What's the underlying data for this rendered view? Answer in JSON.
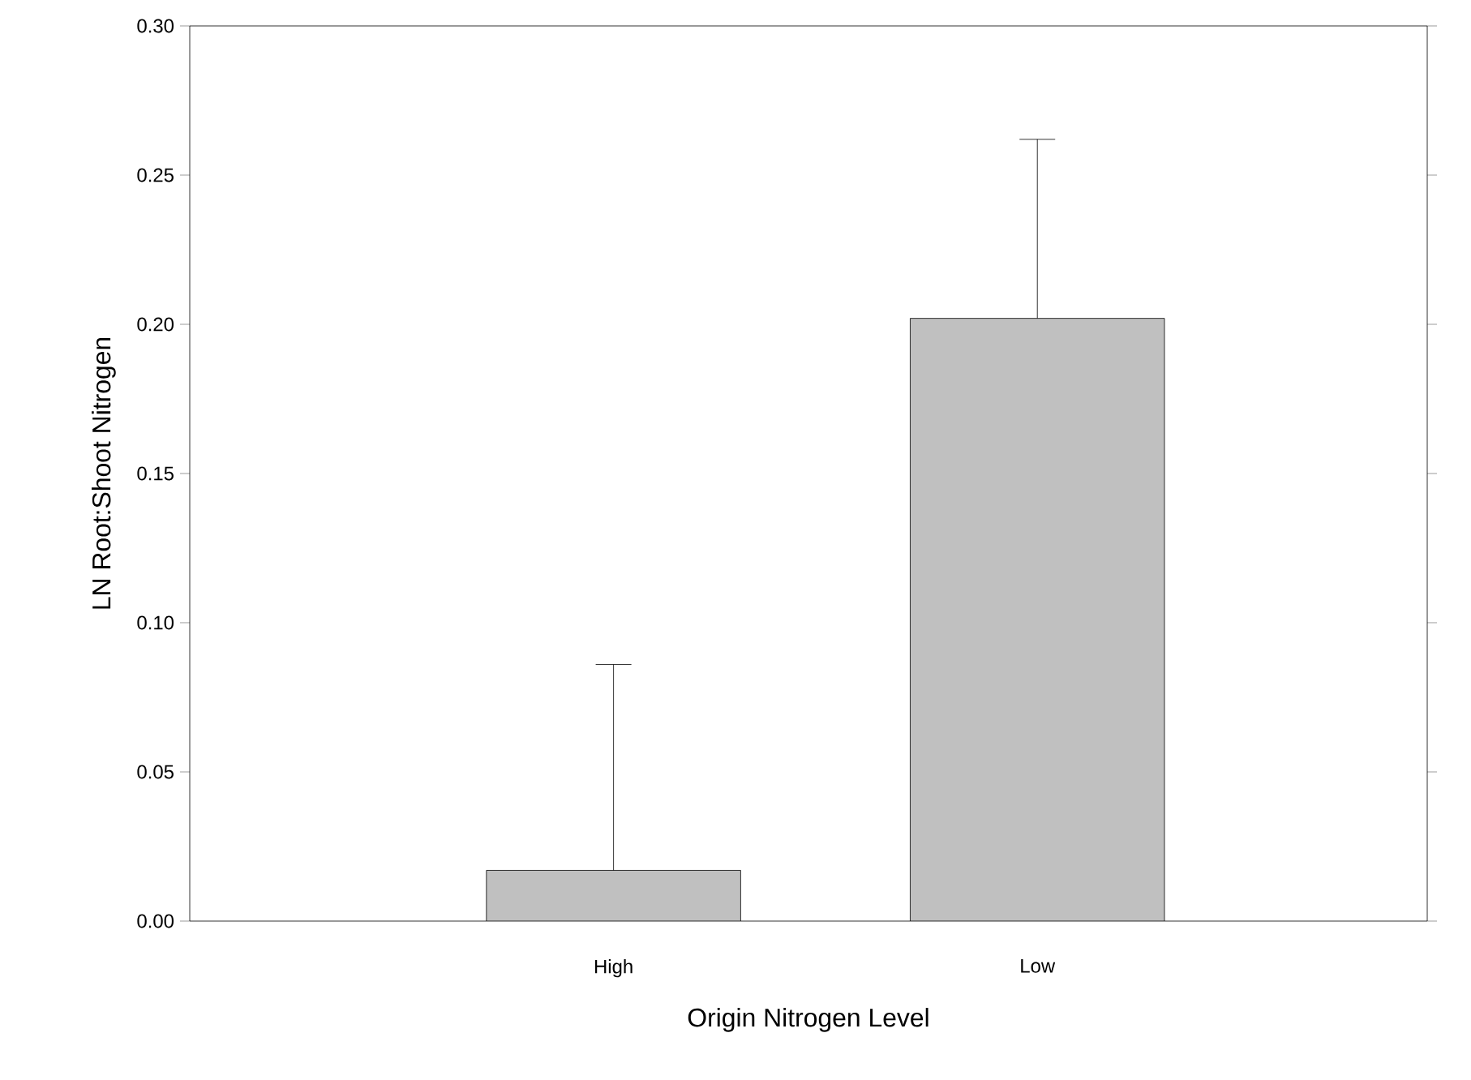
{
  "chart_data": {
    "type": "bar",
    "xlabel": "Origin Nitrogen Level",
    "ylabel": "LN Root:Shoot Nitrogen",
    "categories": [
      "High",
      "Low"
    ],
    "values": [
      0.017,
      0.202
    ],
    "errors": [
      [
        0.017,
        0.086
      ],
      [
        0.202,
        0.262
      ]
    ],
    "color": "#c0c0c0",
    "ylim": [
      0,
      0.3
    ],
    "yticks": [
      {
        "value": 0,
        "label": "0.00"
      },
      {
        "value": 0.05,
        "label": "0.05"
      },
      {
        "value": 0.1,
        "label": "0.10"
      },
      {
        "value": 0.15,
        "label": "0.15"
      },
      {
        "value": 0.2,
        "label": "0.20"
      },
      {
        "value": 0.25,
        "label": "0.25"
      },
      {
        "value": 0.3,
        "label": "0.30"
      }
    ],
    "grid": false
  }
}
